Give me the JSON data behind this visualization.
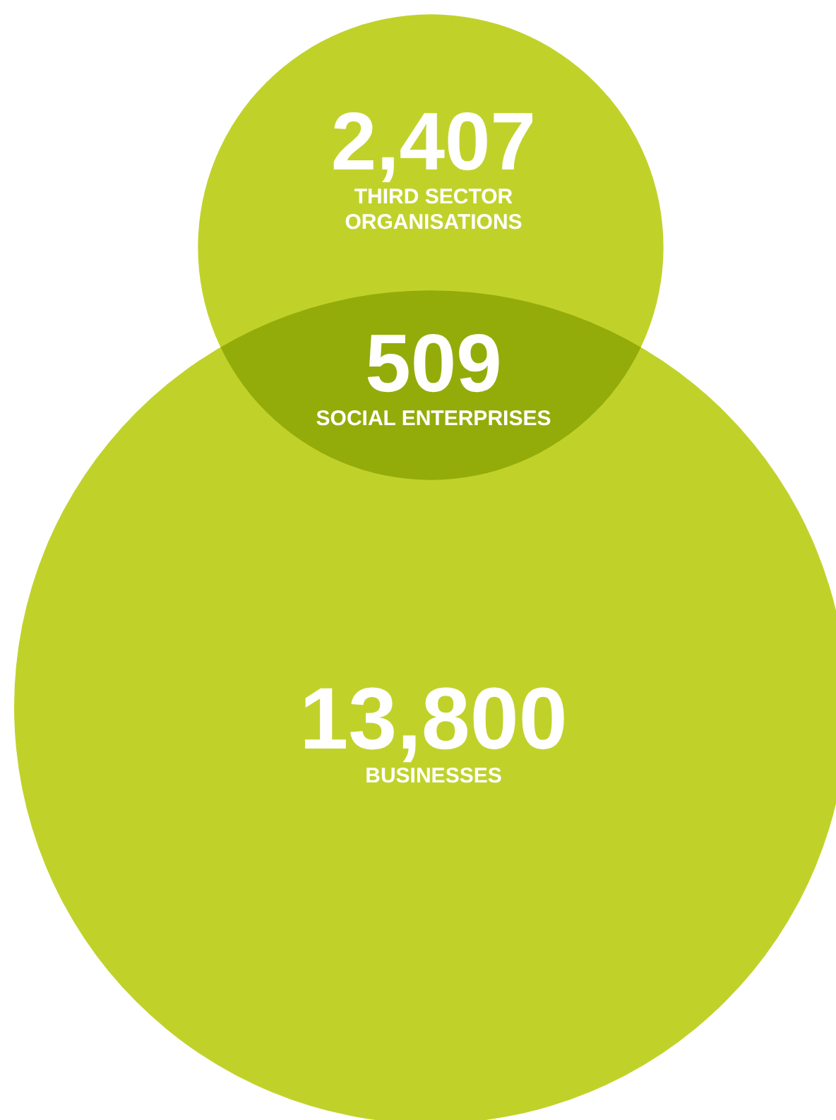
{
  "chart_data": {
    "type": "other",
    "categories": [
      "THIRD SECTOR ORGANISATIONS",
      "SOCIAL ENTERPRISES",
      "BUSINESSES"
    ],
    "values": [
      2407,
      509,
      13800
    ],
    "value_labels": [
      "2,407",
      "509",
      "13,800"
    ],
    "colors": [
      "#c0d22a",
      "#94ac0a",
      "#c0d22a"
    ]
  }
}
